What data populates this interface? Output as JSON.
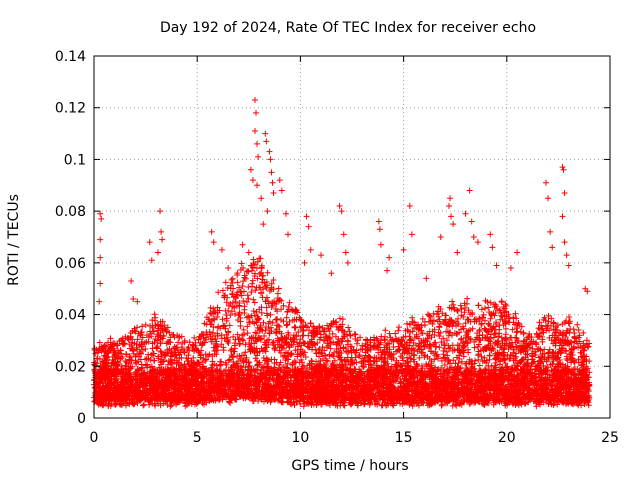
{
  "chart_data": {
    "type": "scatter",
    "title": "Day 192 of 2024, Rate Of TEC Index for receiver echo",
    "xlabel": "GPS time / hours",
    "ylabel": "ROTI / TECUs",
    "xlim": [
      0,
      25
    ],
    "ylim": [
      0,
      0.14
    ],
    "x_ticks": [
      "0",
      "5",
      "10",
      "15",
      "20",
      "25"
    ],
    "y_ticks": [
      "0",
      "0.02",
      "0.04",
      "0.06",
      "0.08",
      "0.1",
      "0.12",
      "0.14"
    ],
    "grid": true,
    "marker": "plus",
    "color": "#ff0000",
    "highlight_points": [
      {
        "x": 0.3,
        "y": 0.079
      },
      {
        "x": 0.35,
        "y": 0.077
      },
      {
        "x": 0.3,
        "y": 0.069
      },
      {
        "x": 0.3,
        "y": 0.062
      },
      {
        "x": 0.3,
        "y": 0.052
      },
      {
        "x": 0.25,
        "y": 0.045
      },
      {
        "x": 1.8,
        "y": 0.053
      },
      {
        "x": 1.9,
        "y": 0.046
      },
      {
        "x": 2.1,
        "y": 0.045
      },
      {
        "x": 2.7,
        "y": 0.068
      },
      {
        "x": 2.8,
        "y": 0.061
      },
      {
        "x": 3.2,
        "y": 0.08
      },
      {
        "x": 3.25,
        "y": 0.072
      },
      {
        "x": 3.3,
        "y": 0.069
      },
      {
        "x": 3.1,
        "y": 0.064
      },
      {
        "x": 5.7,
        "y": 0.072
      },
      {
        "x": 5.8,
        "y": 0.068
      },
      {
        "x": 6.2,
        "y": 0.065
      },
      {
        "x": 6.5,
        "y": 0.058
      },
      {
        "x": 7.2,
        "y": 0.067
      },
      {
        "x": 7.5,
        "y": 0.064
      },
      {
        "x": 7.6,
        "y": 0.096
      },
      {
        "x": 7.7,
        "y": 0.092
      },
      {
        "x": 7.8,
        "y": 0.123
      },
      {
        "x": 7.85,
        "y": 0.118
      },
      {
        "x": 7.8,
        "y": 0.111
      },
      {
        "x": 7.9,
        "y": 0.106
      },
      {
        "x": 7.95,
        "y": 0.101
      },
      {
        "x": 7.9,
        "y": 0.09
      },
      {
        "x": 8.1,
        "y": 0.085
      },
      {
        "x": 8.3,
        "y": 0.11
      },
      {
        "x": 8.35,
        "y": 0.107
      },
      {
        "x": 8.5,
        "y": 0.103
      },
      {
        "x": 8.55,
        "y": 0.1
      },
      {
        "x": 8.6,
        "y": 0.095
      },
      {
        "x": 8.65,
        "y": 0.091
      },
      {
        "x": 8.7,
        "y": 0.087
      },
      {
        "x": 8.4,
        "y": 0.08
      },
      {
        "x": 8.2,
        "y": 0.075
      },
      {
        "x": 9.0,
        "y": 0.092
      },
      {
        "x": 9.1,
        "y": 0.088
      },
      {
        "x": 9.3,
        "y": 0.079
      },
      {
        "x": 9.4,
        "y": 0.071
      },
      {
        "x": 10.3,
        "y": 0.078
      },
      {
        "x": 10.4,
        "y": 0.074
      },
      {
        "x": 10.5,
        "y": 0.065
      },
      {
        "x": 10.2,
        "y": 0.06
      },
      {
        "x": 11.0,
        "y": 0.063
      },
      {
        "x": 11.5,
        "y": 0.056
      },
      {
        "x": 11.9,
        "y": 0.082
      },
      {
        "x": 12.0,
        "y": 0.08
      },
      {
        "x": 12.1,
        "y": 0.071
      },
      {
        "x": 12.2,
        "y": 0.064
      },
      {
        "x": 12.3,
        "y": 0.06
      },
      {
        "x": 13.8,
        "y": 0.076
      },
      {
        "x": 13.85,
        "y": 0.073
      },
      {
        "x": 13.9,
        "y": 0.067
      },
      {
        "x": 14.2,
        "y": 0.057
      },
      {
        "x": 14.3,
        "y": 0.062
      },
      {
        "x": 15.0,
        "y": 0.065
      },
      {
        "x": 15.3,
        "y": 0.082
      },
      {
        "x": 15.4,
        "y": 0.071
      },
      {
        "x": 16.1,
        "y": 0.054
      },
      {
        "x": 16.8,
        "y": 0.07
      },
      {
        "x": 17.2,
        "y": 0.082
      },
      {
        "x": 17.25,
        "y": 0.085
      },
      {
        "x": 17.3,
        "y": 0.078
      },
      {
        "x": 17.4,
        "y": 0.075
      },
      {
        "x": 17.6,
        "y": 0.064
      },
      {
        "x": 18.0,
        "y": 0.079
      },
      {
        "x": 18.2,
        "y": 0.088
      },
      {
        "x": 18.3,
        "y": 0.076
      },
      {
        "x": 18.4,
        "y": 0.07
      },
      {
        "x": 18.6,
        "y": 0.068
      },
      {
        "x": 19.2,
        "y": 0.071
      },
      {
        "x": 19.3,
        "y": 0.066
      },
      {
        "x": 19.5,
        "y": 0.059
      },
      {
        "x": 20.2,
        "y": 0.058
      },
      {
        "x": 20.5,
        "y": 0.064
      },
      {
        "x": 21.9,
        "y": 0.091
      },
      {
        "x": 22.0,
        "y": 0.085
      },
      {
        "x": 22.1,
        "y": 0.072
      },
      {
        "x": 22.2,
        "y": 0.066
      },
      {
        "x": 22.7,
        "y": 0.097
      },
      {
        "x": 22.75,
        "y": 0.096
      },
      {
        "x": 22.8,
        "y": 0.087
      },
      {
        "x": 22.7,
        "y": 0.078
      },
      {
        "x": 22.8,
        "y": 0.068
      },
      {
        "x": 22.9,
        "y": 0.063
      },
      {
        "x": 23.0,
        "y": 0.059
      },
      {
        "x": 23.8,
        "y": 0.05
      },
      {
        "x": 23.9,
        "y": 0.049
      }
    ],
    "activity_profile": {
      "note_hours": [
        0,
        1,
        2,
        3,
        4,
        5,
        6,
        7,
        8,
        9,
        10,
        11,
        12,
        13,
        14,
        15,
        16,
        17,
        18,
        19,
        20,
        21,
        22,
        23,
        24
      ],
      "typical_max": [
        0.028,
        0.03,
        0.034,
        0.04,
        0.032,
        0.03,
        0.048,
        0.058,
        0.062,
        0.05,
        0.04,
        0.036,
        0.038,
        0.03,
        0.032,
        0.036,
        0.04,
        0.044,
        0.046,
        0.046,
        0.044,
        0.032,
        0.04,
        0.038,
        0.03
      ],
      "typical_min": [
        0.006,
        0.006,
        0.006,
        0.006,
        0.006,
        0.006,
        0.007,
        0.007,
        0.008,
        0.007,
        0.006,
        0.006,
        0.006,
        0.006,
        0.006,
        0.006,
        0.006,
        0.006,
        0.006,
        0.006,
        0.006,
        0.006,
        0.006,
        0.006,
        0.006
      ]
    }
  }
}
